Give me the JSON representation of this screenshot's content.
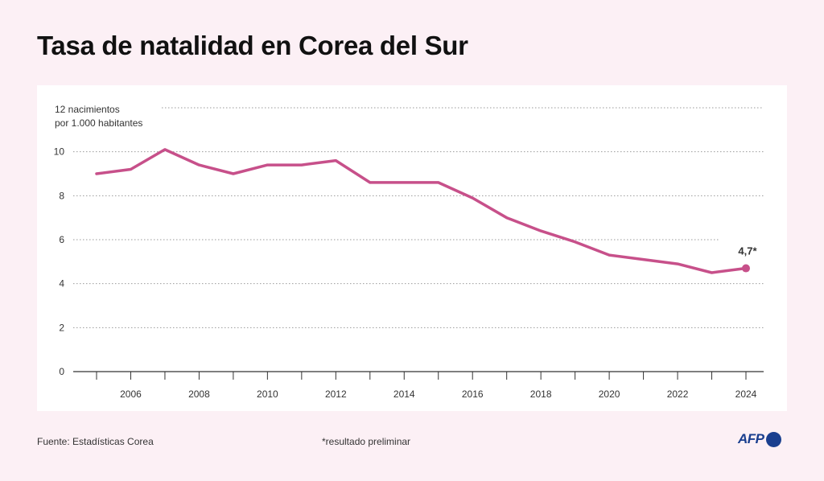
{
  "title": "Tasa de natalidad en Corea del Sur",
  "source": "Fuente: Estadísticas Corea",
  "footnote": "*resultado preliminar",
  "logo": "AFP",
  "colors": {
    "background": "#fcf0f5",
    "line": "#c7508a",
    "axis": "#333333",
    "logo": "#1a3f8f"
  },
  "chart_data": {
    "type": "line",
    "ylabel": [
      "12 nacimientos",
      "por 1.000 habitantes"
    ],
    "ylim": [
      0,
      12
    ],
    "yticks": [
      0,
      2,
      4,
      6,
      8,
      10
    ],
    "xlim": [
      2005,
      2024
    ],
    "xticks": [
      2006,
      2008,
      2010,
      2012,
      2014,
      2016,
      2018,
      2020,
      2022,
      2024
    ],
    "grid": true,
    "x": [
      2005,
      2006,
      2007,
      2008,
      2009,
      2010,
      2011,
      2012,
      2013,
      2014,
      2015,
      2016,
      2017,
      2018,
      2019,
      2020,
      2021,
      2022,
      2023,
      2024
    ],
    "values": [
      9.0,
      9.2,
      10.1,
      9.4,
      9.0,
      9.4,
      9.4,
      9.6,
      8.6,
      8.6,
      8.6,
      7.9,
      7.0,
      6.4,
      5.9,
      5.3,
      5.1,
      4.9,
      4.5,
      4.7
    ],
    "annotation": "4,7*"
  }
}
